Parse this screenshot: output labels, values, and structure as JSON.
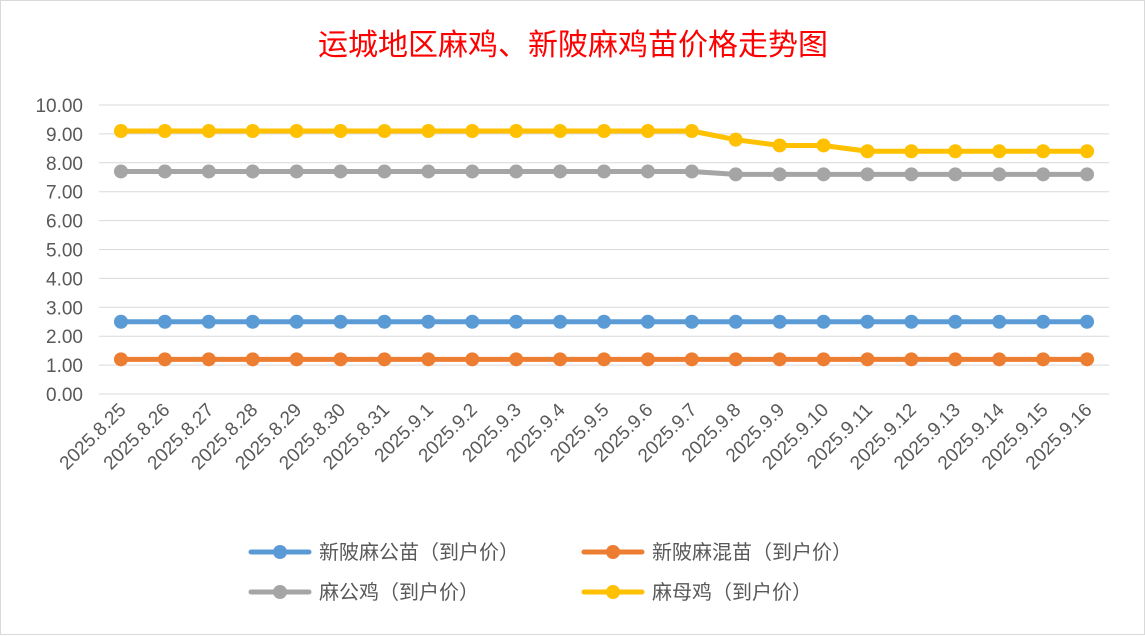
{
  "chart_data": {
    "type": "line",
    "title": "运城地区麻鸡、新陂麻鸡苗价格走势图",
    "categories": [
      "2025.8.25",
      "2025.8.26",
      "2025.8.27",
      "2025.8.28",
      "2025.8.29",
      "2025.8.30",
      "2025.8.31",
      "2025.9.1",
      "2025.9.2",
      "2025.9.3",
      "2025.9.4",
      "2025.9.5",
      "2025.9.6",
      "2025.9.7",
      "2025.9.8",
      "2025.9.9",
      "2025.9.10",
      "2025.9.11",
      "2025.9.12",
      "2025.9.13",
      "2025.9.14",
      "2025.9.15",
      "2025.9.16"
    ],
    "yticks": [
      "0.00",
      "1.00",
      "2.00",
      "3.00",
      "4.00",
      "5.00",
      "6.00",
      "7.00",
      "8.00",
      "9.00",
      "10.00"
    ],
    "ylim": [
      0,
      10
    ],
    "grid": true,
    "legend_position": "bottom",
    "series": [
      {
        "name": "新陂麻公苗（到户价）",
        "color": "#5b9bd5",
        "values": [
          2.5,
          2.5,
          2.5,
          2.5,
          2.5,
          2.5,
          2.5,
          2.5,
          2.5,
          2.5,
          2.5,
          2.5,
          2.5,
          2.5,
          2.5,
          2.5,
          2.5,
          2.5,
          2.5,
          2.5,
          2.5,
          2.5,
          2.5
        ]
      },
      {
        "name": "新陂麻混苗（到户价）",
        "color": "#ed7d31",
        "values": [
          1.2,
          1.2,
          1.2,
          1.2,
          1.2,
          1.2,
          1.2,
          1.2,
          1.2,
          1.2,
          1.2,
          1.2,
          1.2,
          1.2,
          1.2,
          1.2,
          1.2,
          1.2,
          1.2,
          1.2,
          1.2,
          1.2,
          1.2
        ]
      },
      {
        "name": "麻公鸡（到户价）",
        "color": "#a5a5a5",
        "values": [
          7.7,
          7.7,
          7.7,
          7.7,
          7.7,
          7.7,
          7.7,
          7.7,
          7.7,
          7.7,
          7.7,
          7.7,
          7.7,
          7.7,
          7.6,
          7.6,
          7.6,
          7.6,
          7.6,
          7.6,
          7.6,
          7.6,
          7.6
        ]
      },
      {
        "name": "麻母鸡（到户价）",
        "color": "#ffc000",
        "values": [
          9.1,
          9.1,
          9.1,
          9.1,
          9.1,
          9.1,
          9.1,
          9.1,
          9.1,
          9.1,
          9.1,
          9.1,
          9.1,
          9.1,
          8.8,
          8.6,
          8.6,
          8.4,
          8.4,
          8.4,
          8.4,
          8.4,
          8.4
        ]
      }
    ]
  }
}
